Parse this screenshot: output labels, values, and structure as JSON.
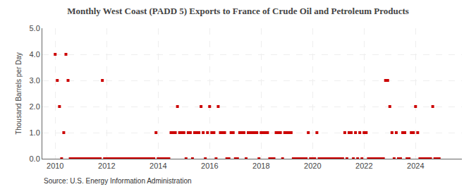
{
  "chart_data": {
    "type": "scatter",
    "title": "Monthly West Coast (PADD 5) Exports to France of Crude Oil and Petroleum Products",
    "ylabel": "Thousand Barrels per Day",
    "annotations": [
      "Source: U.S. Energy Information Administration"
    ],
    "color": "#cc0000",
    "marker": "square",
    "grid": true,
    "xlim": [
      2009.5,
      2025.8
    ],
    "xticks": [
      2010,
      2012,
      2014,
      2016,
      2018,
      2020,
      2022,
      2024
    ],
    "ylim": [
      0.0,
      5.0
    ],
    "yticks": [
      {
        "value": 0.0,
        "label": "0.0"
      },
      {
        "value": 1.0,
        "label": "1.0"
      },
      {
        "value": 2.0,
        "label": "2.0"
      },
      {
        "value": 3.0,
        "label": "3.0"
      },
      {
        "value": 4.0,
        "label": "4.0"
      },
      {
        "value": 5.0,
        "label": "5.0"
      }
    ],
    "x": [
      2010.0,
      2010.083,
      2010.167,
      2010.25,
      2010.333,
      2010.417,
      2010.5,
      2010.583,
      2010.667,
      2010.75,
      2010.833,
      2010.917,
      2011.0,
      2011.083,
      2011.167,
      2011.25,
      2011.333,
      2011.417,
      2011.5,
      2011.583,
      2011.667,
      2011.75,
      2011.833,
      2011.917,
      2012.0,
      2012.083,
      2012.167,
      2012.25,
      2012.333,
      2012.417,
      2012.5,
      2012.583,
      2012.667,
      2012.75,
      2012.833,
      2012.917,
      2013.0,
      2013.083,
      2013.167,
      2013.25,
      2013.333,
      2013.417,
      2013.5,
      2013.583,
      2013.667,
      2013.75,
      2013.833,
      2013.917,
      2014.0,
      2014.083,
      2014.167,
      2014.25,
      2014.333,
      2014.417,
      2014.5,
      2014.583,
      2014.667,
      2014.75,
      2014.833,
      2014.917,
      2015.0,
      2015.083,
      2015.167,
      2015.25,
      2015.333,
      2015.417,
      2015.5,
      2015.583,
      2015.667,
      2015.75,
      2015.833,
      2015.917,
      2016.0,
      2016.083,
      2016.167,
      2016.25,
      2016.333,
      2016.417,
      2016.5,
      2016.583,
      2016.667,
      2016.75,
      2016.833,
      2016.917,
      2017.0,
      2017.083,
      2017.167,
      2017.25,
      2017.333,
      2017.417,
      2017.5,
      2017.583,
      2017.667,
      2017.75,
      2017.833,
      2017.917,
      2018.0,
      2018.083,
      2018.167,
      2018.25,
      2018.333,
      2018.417,
      2018.5,
      2018.583,
      2018.667,
      2018.75,
      2018.833,
      2018.917,
      2019.0,
      2019.083,
      2019.167,
      2019.25,
      2019.333,
      2019.417,
      2019.5,
      2019.583,
      2019.667,
      2019.75,
      2019.833,
      2019.917,
      2020.0,
      2020.083,
      2020.167,
      2020.25,
      2020.333,
      2020.417,
      2020.5,
      2020.583,
      2020.667,
      2020.75,
      2020.833,
      2020.917,
      2021.0,
      2021.083,
      2021.167,
      2021.25,
      2021.333,
      2021.417,
      2021.5,
      2021.583,
      2021.667,
      2021.75,
      2021.833,
      2021.917,
      2022.0,
      2022.083,
      2022.167,
      2022.25,
      2022.333,
      2022.417,
      2022.5,
      2022.583,
      2022.667,
      2022.75,
      2022.833,
      2022.917,
      2023.0,
      2023.083,
      2023.167,
      2023.25,
      2023.333,
      2023.417,
      2023.5,
      2023.583,
      2023.667,
      2023.75,
      2023.833,
      2023.917,
      2024.0,
      2024.083,
      2024.167,
      2024.25,
      2024.333,
      2024.417,
      2024.5,
      2024.583,
      2024.667,
      2024.75,
      2024.833,
      2024.917
    ],
    "values": [
      4.0,
      3.0,
      2.0,
      0.0,
      1.0,
      4.0,
      3.0,
      0.0,
      0.0,
      0.0,
      0.0,
      0.0,
      0.0,
      0.0,
      0.0,
      0.0,
      0.0,
      0.0,
      0.0,
      0.0,
      0.0,
      0.0,
      3.0,
      0.0,
      0.0,
      0.0,
      0.0,
      0.0,
      0.0,
      0.0,
      0.0,
      0.0,
      0.0,
      0.0,
      0.0,
      0.0,
      0.0,
      0.0,
      0.0,
      0.0,
      0.0,
      0.0,
      0.0,
      0.0,
      0.0,
      0.0,
      0.0,
      1.0,
      0.0,
      0.0,
      0.0,
      0.0,
      0.0,
      0.0,
      1.0,
      1.0,
      1.0,
      2.0,
      1.0,
      1.0,
      1.0,
      0.0,
      1.0,
      1.0,
      0.0,
      1.0,
      1.0,
      1.0,
      2.0,
      1.0,
      0.0,
      1.0,
      2.0,
      1.0,
      1.0,
      0.0,
      2.0,
      1.0,
      1.0,
      1.0,
      0.0,
      0.0,
      1.0,
      1.0,
      0.0,
      0.0,
      1.0,
      1.0,
      1.0,
      0.0,
      1.0,
      1.0,
      1.0,
      1.0,
      1.0,
      0.0,
      1.0,
      1.0,
      1.0,
      1.0,
      0.0,
      0.0,
      0.0,
      1.0,
      1.0,
      1.0,
      0.0,
      1.0,
      1.0,
      1.0,
      1.0,
      0.0,
      0.0,
      0.0,
      0.0,
      0.0,
      0.0,
      0.0,
      1.0,
      0.0,
      0.0,
      0.0,
      1.0,
      0.0,
      0.0,
      0.0,
      0.0,
      0.0,
      0.0,
      0.0,
      0.0,
      0.0,
      0.0,
      0.0,
      0.0,
      1.0,
      0.0,
      1.0,
      1.0,
      0.0,
      1.0,
      0.0,
      1.0,
      0.0,
      1.0,
      1.0,
      0.0,
      0.0,
      0.0,
      0.0,
      0.0,
      0.0,
      0.0,
      0.0,
      3.0,
      3.0,
      2.0,
      1.0,
      0.0,
      1.0,
      0.0,
      0.0,
      1.0,
      1.0,
      0.0,
      0.0,
      1.0,
      1.0,
      2.0,
      1.0,
      0.0,
      0.0,
      0.0,
      0.0,
      0.0,
      0.0,
      2.0,
      0.0,
      0.0,
      0.0
    ]
  }
}
